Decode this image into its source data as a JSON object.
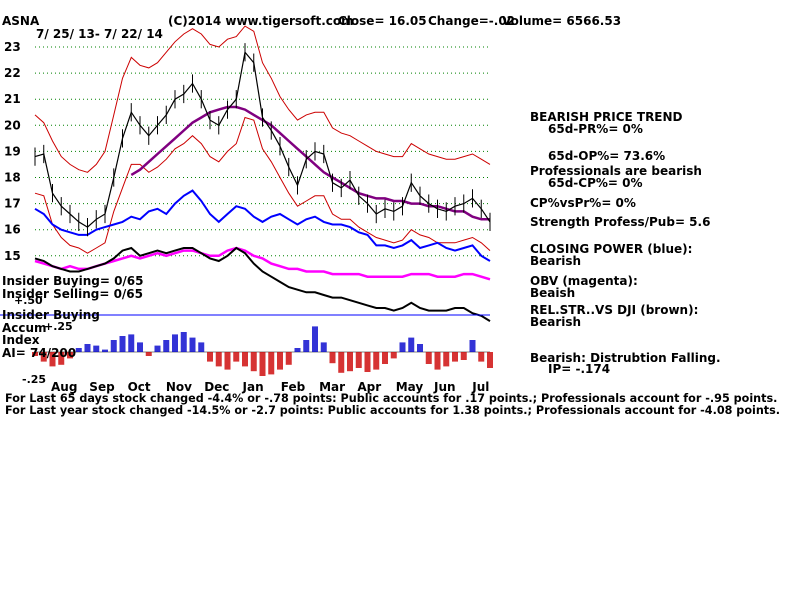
{
  "header": {
    "ticker": "ASNA",
    "copyright": "(C)2014 www.tigersoft.com",
    "close": "Close=  16.05",
    "change": "Change=-.02",
    "volume": "Volume= 6566.53",
    "date_range": "7/ 25/ 13- 7/ 22/ 14"
  },
  "right_panel": {
    "trend_title": "BEARISH PRICE TREND",
    "pr": "65d-PR%= 0%",
    "op": "65d-OP%= 73.6%",
    "pros": "Professionals are bearish",
    "cp": "65d-CP%= 0%",
    "cpvspr": "CP%vsPr%=  0%",
    "strength": "Strength Profess/Pub= 5.6",
    "closing_power": "CLOSING POWER (blue):",
    "closing_power_val": "Bearish",
    "obv": "OBV (magenta):",
    "obv_val": "Beaish",
    "relstr": "REL.STR..VS DJI (brown):",
    "relstr_val": "Bearish",
    "dist": "Bearish: Distrubtion Falling.",
    "ip": "IP= -.174"
  },
  "left_labels": {
    "insider_buying1": "Insider Buying= 0/65",
    "insider_selling": "Insider Selling= 0/65",
    "plus50": "+.50",
    "insider_buying2": "Insider Buying",
    "accum": "Accum",
    "plus25": "+.25",
    "index": "Index",
    "ai": "AI= 74/200",
    "minus25": "-.25"
  },
  "footer": {
    "line1": "For Last 65 days stock changed -4.4% or -.78 points:  Public accounts for  .17 points.;  Professionals account for -.95 points.",
    "line2": "For Last year stock changed -14.5% or -2.7 points:  Public accounts for  1.38 points.;  Professionals account for -4.08 points."
  },
  "colors": {
    "price": "#000000",
    "bands": "#cc0000",
    "ma": "#800080",
    "closing_power": "#0000ff",
    "obv": "#ff00ff",
    "relstr": "#000000",
    "accum_pos": "#0000cc",
    "accum_neg": "#cc0000",
    "grid": "#008000",
    "line": "#0000ff"
  },
  "chart_data": {
    "type": "line",
    "title": "ASNA",
    "x": [
      "Aug",
      "Sep",
      "Oct",
      "Nov",
      "Dec",
      "Jan",
      "Feb",
      "Mar",
      "Apr",
      "May",
      "Jun",
      "Jul"
    ],
    "yticks": [
      15,
      16,
      17,
      18,
      19,
      20,
      21,
      22,
      23
    ],
    "ylim": [
      14.5,
      23.3
    ],
    "price": [
      18.8,
      18.9,
      17.4,
      16.9,
      16.6,
      16.3,
      16.1,
      16.4,
      16.6,
      18.0,
      19.5,
      20.5,
      20.0,
      19.6,
      20.0,
      20.4,
      21.0,
      21.2,
      21.6,
      21.0,
      20.2,
      20.0,
      20.6,
      21.0,
      22.8,
      22.4,
      20.3,
      19.8,
      19.2,
      18.4,
      17.7,
      18.7,
      19.0,
      18.9,
      17.8,
      17.6,
      17.9,
      17.3,
      17.0,
      16.6,
      16.8,
      16.7,
      16.9,
      17.8,
      17.3,
      17.0,
      16.8,
      16.7,
      16.9,
      17.0,
      17.2,
      16.8,
      16.3
    ],
    "ma_start": 11,
    "ma": [
      18.1,
      18.3,
      18.6,
      18.9,
      19.2,
      19.5,
      19.8,
      20.1,
      20.3,
      20.5,
      20.6,
      20.7,
      20.7,
      20.6,
      20.4,
      20.2,
      20.0,
      19.7,
      19.4,
      19.1,
      18.8,
      18.5,
      18.2,
      18.0,
      17.8,
      17.6,
      17.4,
      17.3,
      17.2,
      17.2,
      17.1,
      17.1,
      17.0,
      17.0,
      16.9,
      16.9,
      16.8,
      16.7,
      16.7,
      16.5,
      16.4,
      16.4
    ],
    "upper_band": [
      20.4,
      20.1,
      19.4,
      18.8,
      18.5,
      18.3,
      18.2,
      18.5,
      19.0,
      20.4,
      21.8,
      22.6,
      22.3,
      22.2,
      22.4,
      22.8,
      23.2,
      23.5,
      23.7,
      23.5,
      23.1,
      23.0,
      23.3,
      23.4,
      23.8,
      23.6,
      22.4,
      21.8,
      21.1,
      20.6,
      20.2,
      20.4,
      20.5,
      20.5,
      19.9,
      19.7,
      19.6,
      19.4,
      19.2,
      19.0,
      18.9,
      18.8,
      18.8,
      19.3,
      19.1,
      18.9,
      18.8,
      18.7,
      18.7,
      18.8,
      18.9,
      18.7,
      18.5
    ],
    "lower_band": [
      17.4,
      17.3,
      16.2,
      15.7,
      15.4,
      15.3,
      15.1,
      15.3,
      15.5,
      16.7,
      17.6,
      18.5,
      18.5,
      18.2,
      18.4,
      18.7,
      19.1,
      19.3,
      19.6,
      19.3,
      18.8,
      18.6,
      19.0,
      19.3,
      20.3,
      20.2,
      19.1,
      18.6,
      18.0,
      17.4,
      16.9,
      17.1,
      17.3,
      17.3,
      16.6,
      16.4,
      16.4,
      16.1,
      15.9,
      15.7,
      15.6,
      15.5,
      15.6,
      16.0,
      15.8,
      15.7,
      15.5,
      15.5,
      15.5,
      15.6,
      15.7,
      15.5,
      15.2
    ],
    "closing_power": [
      16.8,
      16.6,
      16.2,
      16.0,
      15.9,
      15.8,
      15.8,
      16.0,
      16.1,
      16.2,
      16.3,
      16.5,
      16.4,
      16.7,
      16.8,
      16.6,
      17.0,
      17.3,
      17.5,
      17.1,
      16.6,
      16.3,
      16.6,
      16.9,
      16.8,
      16.5,
      16.3,
      16.5,
      16.6,
      16.4,
      16.2,
      16.4,
      16.5,
      16.3,
      16.2,
      16.2,
      16.1,
      15.9,
      15.8,
      15.4,
      15.4,
      15.3,
      15.4,
      15.6,
      15.3,
      15.4,
      15.5,
      15.3,
      15.2,
      15.3,
      15.4,
      15.0,
      14.8
    ],
    "obv": [
      14.8,
      14.7,
      14.6,
      14.5,
      14.6,
      14.5,
      14.5,
      14.6,
      14.7,
      14.8,
      14.9,
      15.0,
      14.9,
      15.0,
      15.1,
      15.0,
      15.1,
      15.2,
      15.2,
      15.1,
      15.0,
      15.0,
      15.2,
      15.3,
      15.2,
      15.0,
      14.9,
      14.7,
      14.6,
      14.5,
      14.5,
      14.4,
      14.4,
      14.4,
      14.3,
      14.3,
      14.3,
      14.3,
      14.2,
      14.2,
      14.2,
      14.2,
      14.2,
      14.3,
      14.3,
      14.3,
      14.2,
      14.2,
      14.2,
      14.3,
      14.3,
      14.2,
      14.1
    ],
    "relstr": [
      14.9,
      14.8,
      14.6,
      14.5,
      14.4,
      14.4,
      14.5,
      14.6,
      14.7,
      14.9,
      15.2,
      15.3,
      15.0,
      15.1,
      15.2,
      15.1,
      15.2,
      15.3,
      15.3,
      15.1,
      14.9,
      14.8,
      15.0,
      15.3,
      15.1,
      14.7,
      14.4,
      14.2,
      14.0,
      13.8,
      13.7,
      13.6,
      13.6,
      13.5,
      13.4,
      13.4,
      13.3,
      13.2,
      13.1,
      13.0,
      13.0,
      12.9,
      13.0,
      13.2,
      13.0,
      12.9,
      12.9,
      12.9,
      13.0,
      13.0,
      12.8,
      12.7,
      12.5
    ],
    "accum": [
      -0.05,
      -0.12,
      -0.18,
      -0.16,
      -0.08,
      0.05,
      0.1,
      0.08,
      0.03,
      0.15,
      0.2,
      0.22,
      0.12,
      -0.05,
      0.08,
      0.15,
      0.22,
      0.25,
      0.18,
      0.12,
      -0.12,
      -0.18,
      -0.22,
      -0.12,
      -0.18,
      -0.24,
      -0.3,
      -0.28,
      -0.22,
      -0.16,
      0.05,
      0.15,
      0.32,
      0.12,
      -0.14,
      -0.26,
      -0.24,
      -0.2,
      -0.25,
      -0.22,
      -0.15,
      -0.08,
      0.12,
      0.18,
      0.1,
      -0.15,
      -0.22,
      -0.18,
      -0.12,
      -0.1,
      0.15,
      -0.12,
      -0.2
    ]
  }
}
